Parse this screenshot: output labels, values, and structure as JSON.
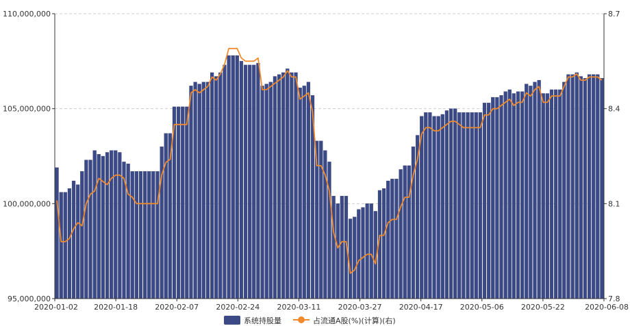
{
  "chart_data": {
    "type": "bar",
    "grid": "horizontal dashed",
    "legend_position": "bottom-center",
    "legend": {
      "bar_label": "系统持股量",
      "line_label": "占流通A股(%)(计算)(右)"
    },
    "colors": {
      "bar": "#3b4a87",
      "bar_edge": "#2b3566",
      "line": "#f08a2c",
      "grid": "#cccccc",
      "axis": "#333333"
    },
    "x_tick_labels": [
      "2020-01-02",
      "2020-01-18",
      "2020-02-07",
      "2020-02-24",
      "2020-03-11",
      "2020-03-27",
      "2020-04-17",
      "2020-05-06",
      "2020-05-22",
      "2020-06-08"
    ],
    "y_left": {
      "min": 95000000,
      "max": 110000000,
      "ticks": [
        "95,000,000",
        "100,000,000",
        "105,000,000",
        "110,000,000"
      ]
    },
    "y_right": {
      "min": 7.8,
      "max": 8.7,
      "ticks": [
        "7.8",
        "8.1",
        "8.4",
        "8.7"
      ]
    },
    "series": [
      {
        "name": "系统持股量",
        "axis": "left",
        "kind": "bar",
        "values": [
          101900000,
          100600000,
          100600000,
          100800000,
          101200000,
          101000000,
          101700000,
          102300000,
          102300000,
          102800000,
          102600000,
          102500000,
          102700000,
          102800000,
          102800000,
          102700000,
          102200000,
          102100000,
          101700000,
          101700000,
          101700000,
          101700000,
          101700000,
          101700000,
          101700000,
          103000000,
          103700000,
          103700000,
          105100000,
          105100000,
          105100000,
          105100000,
          106200000,
          106400000,
          106300000,
          106400000,
          106400000,
          106900000,
          106700000,
          106900000,
          107300000,
          107800000,
          107800000,
          107800000,
          107500000,
          107300000,
          107300000,
          107300000,
          107400000,
          106200000,
          106300000,
          106400000,
          106700000,
          106800000,
          106900000,
          107100000,
          106900000,
          106900000,
          106100000,
          106200000,
          106400000,
          105700000,
          103300000,
          103300000,
          102800000,
          102200000,
          100400000,
          100000000,
          100400000,
          100400000,
          99200000,
          99300000,
          99700000,
          99800000,
          100000000,
          100000000,
          99600000,
          100700000,
          100800000,
          101200000,
          101300000,
          101300000,
          101800000,
          102000000,
          102000000,
          103000000,
          103600000,
          104600000,
          104800000,
          104800000,
          104600000,
          104600000,
          104700000,
          104900000,
          105000000,
          105000000,
          104800000,
          104800000,
          104800000,
          104800000,
          104800000,
          104800000,
          105300000,
          105300000,
          105600000,
          105600000,
          105700000,
          105900000,
          106000000,
          105800000,
          105900000,
          105900000,
          106300000,
          106200000,
          106400000,
          106500000,
          105800000,
          105800000,
          106000000,
          106000000,
          106000000,
          106400000,
          106800000,
          106800000,
          106900000,
          106700000,
          106600000,
          106800000,
          106800000,
          106800000,
          106600000
        ]
      },
      {
        "name": "占流通A股(%)(计算)(右)",
        "axis": "right",
        "kind": "line",
        "values": [
          8.11,
          7.98,
          7.98,
          7.99,
          8.02,
          8.04,
          8.03,
          8.1,
          8.13,
          8.14,
          8.18,
          8.17,
          8.16,
          8.18,
          8.19,
          8.19,
          8.18,
          8.13,
          8.12,
          8.1,
          8.1,
          8.1,
          8.1,
          8.1,
          8.1,
          8.19,
          8.23,
          8.24,
          8.35,
          8.35,
          8.35,
          8.35,
          8.45,
          8.46,
          8.45,
          8.46,
          8.47,
          8.5,
          8.49,
          8.51,
          8.54,
          8.59,
          8.59,
          8.59,
          8.56,
          8.55,
          8.55,
          8.55,
          8.56,
          8.46,
          8.46,
          8.47,
          8.48,
          8.49,
          8.5,
          8.52,
          8.5,
          8.5,
          8.43,
          8.44,
          8.45,
          8.39,
          8.22,
          8.22,
          8.19,
          8.14,
          8.01,
          7.96,
          7.98,
          7.98,
          7.88,
          7.89,
          7.92,
          7.93,
          7.94,
          7.94,
          7.91,
          8.0,
          8.0,
          8.04,
          8.05,
          8.05,
          8.09,
          8.12,
          8.12,
          8.19,
          8.24,
          8.32,
          8.34,
          8.34,
          8.33,
          8.33,
          8.34,
          8.35,
          8.36,
          8.36,
          8.35,
          8.34,
          8.34,
          8.34,
          8.34,
          8.34,
          8.38,
          8.38,
          8.4,
          8.4,
          8.41,
          8.42,
          8.43,
          8.41,
          8.42,
          8.42,
          8.45,
          8.44,
          8.46,
          8.47,
          8.42,
          8.42,
          8.44,
          8.44,
          8.44,
          8.47,
          8.5,
          8.5,
          8.51,
          8.49,
          8.49,
          8.5,
          8.5,
          8.5,
          8.49
        ]
      }
    ]
  }
}
